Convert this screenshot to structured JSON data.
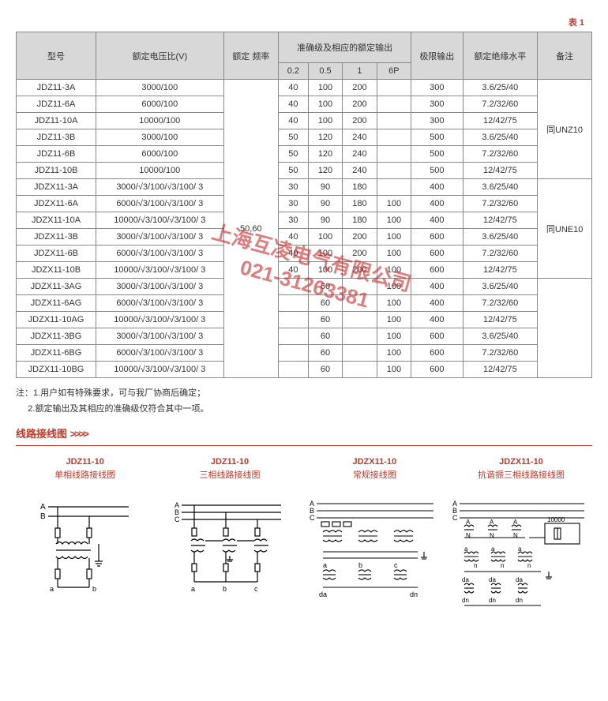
{
  "table_label": "表 1",
  "headers": {
    "model": "型号",
    "ratio": "额定电压比(V)",
    "freq": "额定\n频率",
    "accuracy": "准确级及相应的额定输出",
    "sub": [
      "0.2",
      "0.5",
      "1",
      "6P"
    ],
    "limit": "极限输出",
    "insul": "额定绝缘水平",
    "remark": "备注"
  },
  "freq_value": "50,60",
  "remark_groups": [
    "同UNZ10",
    "同UNE10",
    ""
  ],
  "rows": [
    {
      "m": "JDZ11-3A",
      "r": "3000/100",
      "a": [
        "40",
        "100",
        "200",
        ""
      ],
      "l": "300",
      "i": "3.6/25/40",
      "g": 0
    },
    {
      "m": "JDZ11-6A",
      "r": "6000/100",
      "a": [
        "40",
        "100",
        "200",
        ""
      ],
      "l": "300",
      "i": "7.2/32/60",
      "g": 0
    },
    {
      "m": "JDZ11-10A",
      "r": "10000/100",
      "a": [
        "40",
        "100",
        "200",
        ""
      ],
      "l": "300",
      "i": "12/42/75",
      "g": 0
    },
    {
      "m": "JDZ11-3B",
      "r": "3000/100",
      "a": [
        "50",
        "120",
        "240",
        ""
      ],
      "l": "500",
      "i": "3.6/25/40",
      "g": 0
    },
    {
      "m": "JDZ11-6B",
      "r": "6000/100",
      "a": [
        "50",
        "120",
        "240",
        ""
      ],
      "l": "500",
      "i": "7.2/32/60",
      "g": 0
    },
    {
      "m": "JDZ11-10B",
      "r": "10000/100",
      "a": [
        "50",
        "120",
        "240",
        ""
      ],
      "l": "500",
      "i": "12/42/75",
      "g": 0
    },
    {
      "m": "JDZX11-3A",
      "r": "3000/√3/100/√3/100/ 3",
      "a": [
        "30",
        "90",
        "180",
        ""
      ],
      "l": "400",
      "i": "3.6/25/40",
      "g": 1
    },
    {
      "m": "JDZX11-6A",
      "r": "6000/√3/100/√3/100/ 3",
      "a": [
        "30",
        "90",
        "180",
        "100"
      ],
      "l": "400",
      "i": "7.2/32/60",
      "g": 1
    },
    {
      "m": "JDZX11-10A",
      "r": "10000/√3/100/√3/100/ 3",
      "a": [
        "30",
        "90",
        "180",
        "100"
      ],
      "l": "400",
      "i": "12/42/75",
      "g": 1
    },
    {
      "m": "JDZX11-3B",
      "r": "3000/√3/100/√3/100/ 3",
      "a": [
        "40",
        "100",
        "200",
        "100"
      ],
      "l": "600",
      "i": "3.6/25/40",
      "g": 1
    },
    {
      "m": "JDZX11-6B",
      "r": "6000/√3/100/√3/100/ 3",
      "a": [
        "40",
        "100",
        "200",
        "100"
      ],
      "l": "600",
      "i": "7.2/32/60",
      "g": 1
    },
    {
      "m": "JDZX11-10B",
      "r": "10000/√3/100/√3/100/ 3",
      "a": [
        "40",
        "100",
        "200",
        "100"
      ],
      "l": "600",
      "i": "12/42/75",
      "g": 1
    },
    {
      "m": "JDZX11-3AG",
      "r": "3000/√3/100/√3/100/ 3",
      "a": [
        "",
        "60",
        "",
        "100"
      ],
      "l": "400",
      "i": "3.6/25/40",
      "g": 2
    },
    {
      "m": "JDZX11-6AG",
      "r": "6000/√3/100/√3/100/ 3",
      "a": [
        "",
        "60",
        "",
        "100"
      ],
      "l": "400",
      "i": "7.2/32/60",
      "g": 2
    },
    {
      "m": "JDZX11-10AG",
      "r": "10000/√3/100/√3/100/ 3",
      "a": [
        "",
        "60",
        "",
        "100"
      ],
      "l": "400",
      "i": "12/42/75",
      "g": 2
    },
    {
      "m": "JDZX11-3BG",
      "r": "3000/√3/100/√3/100/ 3",
      "a": [
        "",
        "60",
        "",
        "100"
      ],
      "l": "600",
      "i": "3.6/25/40",
      "g": 2
    },
    {
      "m": "JDZX11-6BG",
      "r": "6000/√3/100/√3/100/ 3",
      "a": [
        "",
        "60",
        "",
        "100"
      ],
      "l": "600",
      "i": "7.2/32/60",
      "g": 2
    },
    {
      "m": "JDZX11-10BG",
      "r": "10000/√3/100/√3/100/ 3",
      "a": [
        "",
        "60",
        "",
        "100"
      ],
      "l": "600",
      "i": "12/42/75",
      "g": 2
    }
  ],
  "notes": {
    "prefix": "注：",
    "items": [
      "1.用户如有特殊要求，可与我厂协商后确定；",
      "2.额定输出及其相应的准确级仅符合其中一项。"
    ]
  },
  "section_title": "线路接线图",
  "chevrons": ">>>>",
  "diagrams": [
    {
      "t": "JDZ11-10",
      "s": "单相线路接线图"
    },
    {
      "t": "JDZ11-10",
      "s": "三相线路接线图"
    },
    {
      "t": "JDZX11-10",
      "s": "常规接线图"
    },
    {
      "t": "JDZX11-10",
      "s": "抗谐振三相线路接线图"
    }
  ],
  "watermark": {
    "line1": "上海互凌电气有限公司",
    "line2": "021-31263381"
  },
  "colors": {
    "accent": "#c0392b",
    "header_bg": "#d8d8d8",
    "border": "#888"
  }
}
